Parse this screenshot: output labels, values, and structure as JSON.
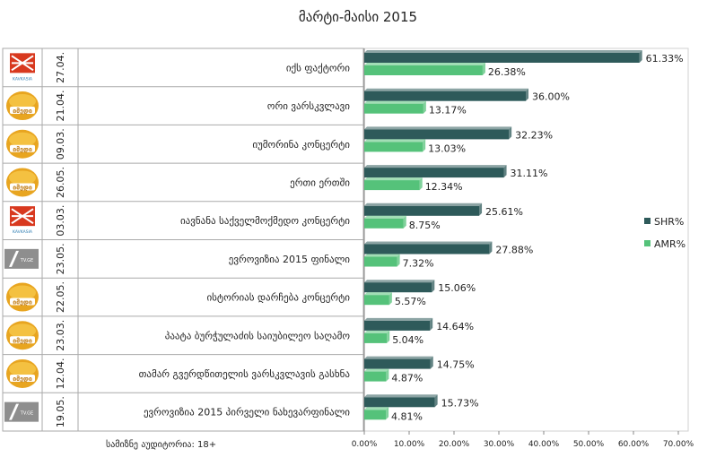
{
  "chart_data": {
    "type": "bar",
    "title": "მარტი-მაისი 2015",
    "xlim": [
      0,
      70
    ],
    "ticks": [
      "0.00%",
      "10.00%",
      "20.00%",
      "30.00%",
      "40.00%",
      "50.00%",
      "60.00%",
      "70.00%"
    ],
    "legend_position": "right",
    "series": [
      {
        "name": "SHR%",
        "color": "#2e5a5a"
      },
      {
        "name": "AMR%",
        "color": "#55c27a"
      }
    ],
    "rows": [
      {
        "date": "27.04.",
        "channel": "kavkasia",
        "label": "იქს ფაქტორი",
        "shr": 61.33,
        "amr": 26.38,
        "shr_label": "61.33%",
        "amr_label": "26.38%"
      },
      {
        "date": "21.04.",
        "channel": "imedi",
        "label": "ორი ვარსკვლავი",
        "shr": 36.0,
        "amr": 13.17,
        "shr_label": "36.00%",
        "amr_label": "13.17%"
      },
      {
        "date": "09.03.",
        "channel": "imedi",
        "label": "იუმორინა კონცერტი",
        "shr": 32.23,
        "amr": 13.03,
        "shr_label": "32.23%",
        "amr_label": "13.03%"
      },
      {
        "date": "26.05.",
        "channel": "imedi",
        "label": "ერთი ერთში",
        "shr": 31.11,
        "amr": 12.34,
        "shr_label": "31.11%",
        "amr_label": "12.34%"
      },
      {
        "date": "03.03.",
        "channel": "kavkasia",
        "label": "იავნანა საქველმოქმედო კონცერტი",
        "shr": 25.61,
        "amr": 8.75,
        "shr_label": "25.61%",
        "amr_label": "8.75%"
      },
      {
        "date": "23.05.",
        "channel": "tvge",
        "label": "ევროვიზია 2015 ფინალი",
        "shr": 27.88,
        "amr": 7.32,
        "shr_label": "27.88%",
        "amr_label": "7.32%"
      },
      {
        "date": "22.05.",
        "channel": "imedi",
        "label": "ისტორიას დარჩება კონცერტი",
        "shr": 15.06,
        "amr": 5.57,
        "shr_label": "15.06%",
        "amr_label": "5.57%"
      },
      {
        "date": "23.03.",
        "channel": "imedi",
        "label": "პაატა ბურჭულაძის საიუბილეო საღამო",
        "shr": 14.64,
        "amr": 5.04,
        "shr_label": "14.64%",
        "amr_label": "5.04%"
      },
      {
        "date": "12.04.",
        "channel": "imedi",
        "label": "თამარ გვერდწითელის ვარსკვლავის გასხნა",
        "shr": 14.75,
        "amr": 4.87,
        "shr_label": "14.75%",
        "amr_label": "4.87%"
      },
      {
        "date": "19.05.",
        "channel": "tvge",
        "label": "ევროვიზია 2015 პირველი ნახევარფინალი",
        "shr": 15.73,
        "amr": 4.81,
        "shr_label": "15.73%",
        "amr_label": "4.81%"
      }
    ]
  },
  "logos": {
    "imedi_text": "იმედი",
    "tvge_text": "TV.GE",
    "kavkasia_text": "KAVKASIA"
  },
  "footer": {
    "audience": "სამიზნე აუდიტორია: 18+"
  }
}
